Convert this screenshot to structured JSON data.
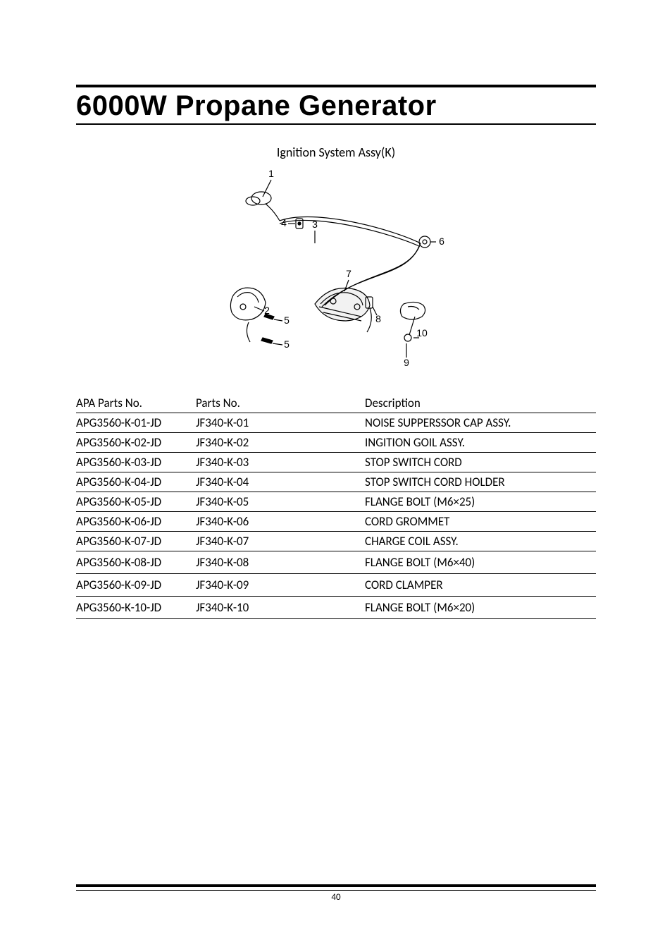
{
  "header": {
    "title": "6000W Propane Generator"
  },
  "section": {
    "subtitle": "Ignition System Assy(K)"
  },
  "diagram": {
    "type": "exploded-parts-illustration",
    "callouts": [
      "1",
      "4",
      "3",
      "6",
      "2",
      "5",
      "5",
      "7",
      "8",
      "10",
      "9"
    ],
    "line_color": "#000000",
    "stroke_width": 1.2,
    "font_size": 14
  },
  "table": {
    "columns": [
      "APA Parts No.",
      "Parts No.",
      "Description"
    ],
    "rows": [
      [
        "APG3560-K-01-JD",
        "JF340-K-01",
        "NOISE SUPPERSSOR CAP ASSY."
      ],
      [
        "APG3560-K-02-JD",
        "JF340-K-02",
        "INGITION GOIL ASSY."
      ],
      [
        "APG3560-K-03-JD",
        "JF340-K-03",
        "STOP SWITCH CORD"
      ],
      [
        "APG3560-K-04-JD",
        "JF340-K-04",
        "STOP SWITCH CORD HOLDER"
      ],
      [
        "APG3560-K-05-JD",
        "JF340-K-05",
        "FLANGE BOLT (M6×25)"
      ],
      [
        "APG3560-K-06-JD",
        "JF340-K-06",
        "CORD GROMMET"
      ],
      [
        "APG3560-K-07-JD",
        "JF340-K-07",
        "CHARGE COIL ASSY."
      ],
      [
        "APG3560-K-08-JD",
        "JF340-K-08",
        "FLANGE BOLT (M6×40)"
      ],
      [
        "APG3560-K-09-JD",
        "JF340-K-09",
        "CORD CLAMPER"
      ],
      [
        "APG3560-K-10-JD",
        "JF340-K-10",
        "FLANGE BOLT (M6×20)"
      ]
    ]
  },
  "footer": {
    "page_number": "40"
  },
  "style": {
    "page_bg": "#ffffff",
    "text_color": "#000000",
    "rule_color": "#000000",
    "title_fontsize": 40,
    "subtitle_fontsize": 18,
    "table_fontsize": 17
  }
}
